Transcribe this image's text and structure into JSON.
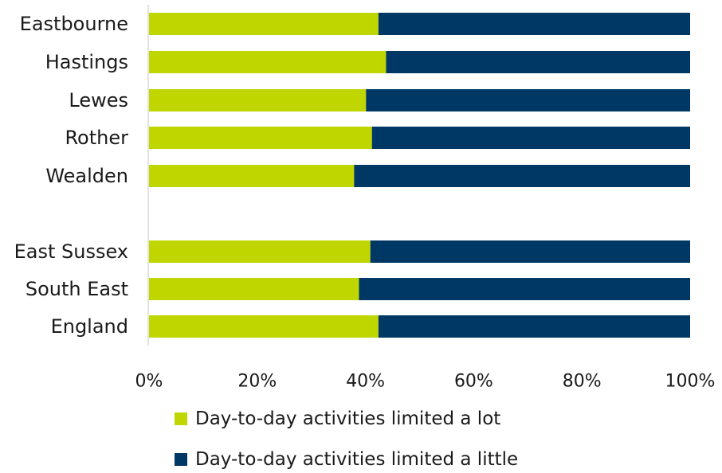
{
  "chart_data": {
    "type": "bar",
    "orientation": "horizontal",
    "stacked": "100%",
    "categories": [
      "Eastbourne",
      "Hastings",
      "Lewes",
      "Rother",
      "Wealden",
      "East Sussex",
      "South East",
      "England"
    ],
    "series": [
      {
        "name": "Day-to-day activities limited a lot",
        "color": "#bfd600",
        "values": [
          42.4,
          43.8,
          40.1,
          41.2,
          37.9,
          40.9,
          38.8,
          42.4
        ]
      },
      {
        "name": "Day-to-day activities limited a little",
        "color": "#003865",
        "values": [
          57.6,
          56.2,
          59.9,
          58.8,
          62.1,
          59.1,
          61.2,
          57.6
        ]
      }
    ],
    "xlim": [
      0,
      100
    ],
    "x_ticks": [
      "0%",
      "20%",
      "40%",
      "60%",
      "80%",
      "100%"
    ],
    "xlabel": "",
    "ylabel": "",
    "title": "",
    "grid": false,
    "legend_position": "bottom"
  }
}
